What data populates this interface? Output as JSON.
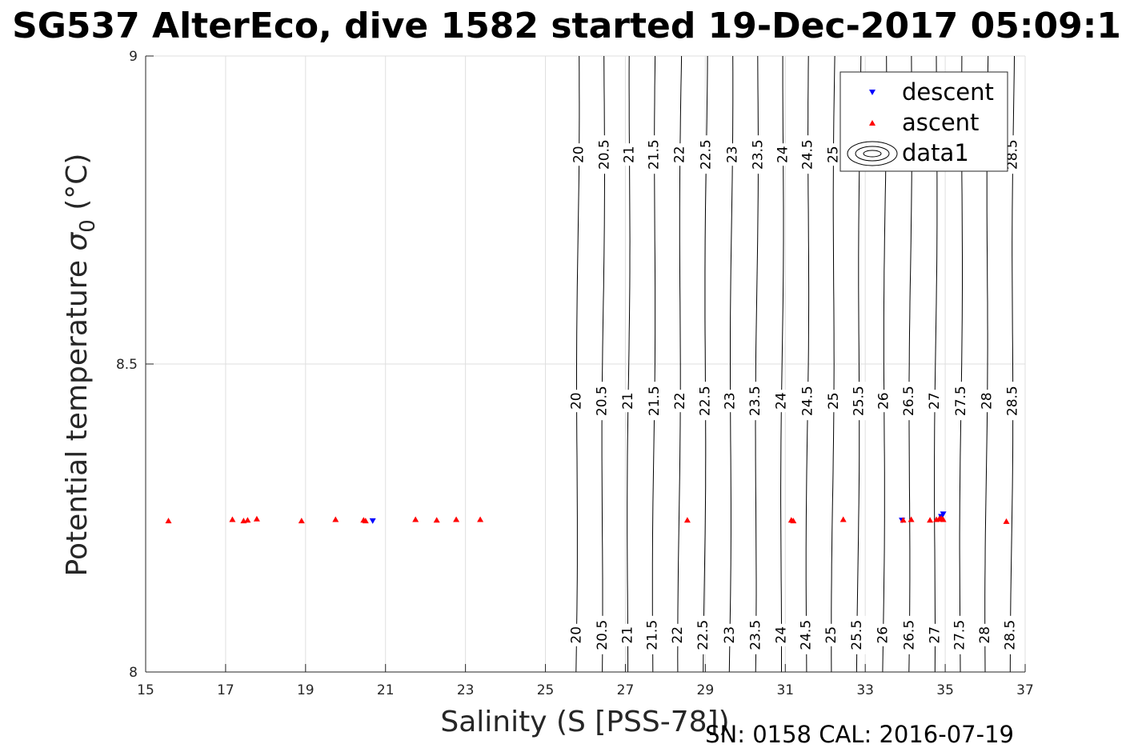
{
  "chart_data": {
    "type": "scatter",
    "title": "SG537 AlterEco, dive 1582 started 19-Dec-2017 05:09:1",
    "xlabel": "Salinity (S [PSS-78])",
    "ylabel_main": "Potential temperature ",
    "ylabel_sigma": "σ",
    "ylabel_sub": "0",
    "ylabel_unit": " (°C)",
    "xlim": [
      15,
      37
    ],
    "ylim": [
      8,
      9
    ],
    "xticks": [
      "15",
      "17",
      "19",
      "21",
      "23",
      "25",
      "27",
      "29",
      "31",
      "33",
      "35",
      "37"
    ],
    "yticks": [
      "8",
      "8.5",
      "9"
    ],
    "grid": true,
    "legend_position": "top-right",
    "series": [
      {
        "name": "descent",
        "color": "#0000ff",
        "marker": "triangle-down",
        "x": [
          20.68,
          33.92,
          34.9,
          34.95
        ],
        "y": [
          8.245,
          8.246,
          8.252,
          8.256
        ]
      },
      {
        "name": "ascent",
        "color": "#ff0000",
        "marker": "triangle-up",
        "x": [
          15.57,
          17.17,
          17.45,
          17.55,
          17.78,
          18.9,
          19.75,
          20.45,
          20.5,
          21.75,
          22.28,
          22.77,
          23.37,
          28.55,
          31.15,
          31.2,
          32.45,
          33.95,
          34.15,
          34.62,
          34.78,
          34.85,
          34.9,
          34.95,
          36.53
        ],
        "y": [
          8.246,
          8.248,
          8.246,
          8.247,
          8.249,
          8.246,
          8.248,
          8.247,
          8.246,
          8.248,
          8.247,
          8.248,
          8.248,
          8.247,
          8.247,
          8.246,
          8.248,
          8.247,
          8.248,
          8.247,
          8.248,
          8.249,
          8.25,
          8.248,
          8.245
        ]
      },
      {
        "name": "data1",
        "type": "contour",
        "color": "#000000",
        "levels": [
          "20",
          "20.5",
          "21",
          "21.5",
          "22",
          "22.5",
          "23",
          "23.5",
          "24",
          "24.5",
          "25",
          "25.5",
          "26",
          "26.5",
          "27",
          "27.5",
          "28",
          "28.5"
        ],
        "level_salinity_at_ymid": [
          25.8,
          26.44,
          27.08,
          27.72,
          28.36,
          29.0,
          29.64,
          30.28,
          30.92,
          31.56,
          32.2,
          32.84,
          33.48,
          34.12,
          34.76,
          35.4,
          36.04,
          36.68
        ],
        "label_rows_temperature": [
          8.84,
          8.44,
          8.06
        ]
      }
    ]
  },
  "footer": {
    "sn_cal": "SN: 0158  CAL: 2016-07-19"
  }
}
